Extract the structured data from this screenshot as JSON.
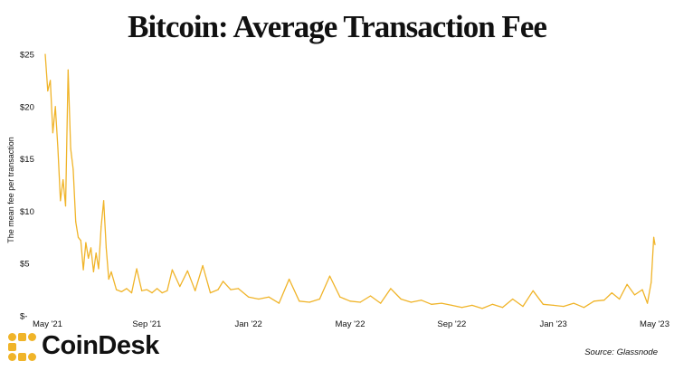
{
  "chart_data": {
    "type": "line",
    "title": "Bitcoin: Average Transaction Fee",
    "ylabel": "The mean fee per transaction",
    "xlabel": "",
    "source": "Source: Glassnode",
    "ylim": [
      0,
      25
    ],
    "xlim": [
      0,
      24
    ],
    "yticks": [
      {
        "value": 0,
        "label": "$-"
      },
      {
        "value": 5,
        "label": "$5"
      },
      {
        "value": 10,
        "label": "$10"
      },
      {
        "value": 15,
        "label": "$15"
      },
      {
        "value": 20,
        "label": "$20"
      },
      {
        "value": 25,
        "label": "$25"
      }
    ],
    "xticks": [
      {
        "value": 0,
        "label": "May '21"
      },
      {
        "value": 4,
        "label": "Sep '21"
      },
      {
        "value": 8,
        "label": "Jan '22"
      },
      {
        "value": 12,
        "label": "May '22"
      },
      {
        "value": 16,
        "label": "Sep '22"
      },
      {
        "value": 20,
        "label": "Jan '23"
      },
      {
        "value": 24,
        "label": "May '23"
      }
    ],
    "series": [
      {
        "name": "Average Transaction Fee",
        "color": "#F0B429",
        "x": [
          0,
          0.1,
          0.2,
          0.3,
          0.4,
          0.5,
          0.6,
          0.7,
          0.8,
          0.9,
          1.0,
          1.1,
          1.2,
          1.3,
          1.4,
          1.5,
          1.6,
          1.7,
          1.8,
          1.9,
          2.0,
          2.1,
          2.2,
          2.3,
          2.4,
          2.5,
          2.6,
          2.8,
          3.0,
          3.2,
          3.4,
          3.6,
          3.8,
          4.0,
          4.2,
          4.4,
          4.6,
          4.8,
          5.0,
          5.3,
          5.6,
          5.9,
          6.2,
          6.5,
          6.8,
          7.0,
          7.3,
          7.6,
          8.0,
          8.4,
          8.8,
          9.2,
          9.6,
          10.0,
          10.4,
          10.8,
          11.2,
          11.6,
          12.0,
          12.4,
          12.8,
          13.2,
          13.6,
          14.0,
          14.4,
          14.8,
          15.2,
          15.6,
          16.0,
          16.4,
          16.8,
          17.2,
          17.6,
          18.0,
          18.4,
          18.8,
          19.2,
          19.6,
          20.0,
          20.4,
          20.8,
          21.2,
          21.6,
          22.0,
          22.3,
          22.6,
          22.9,
          23.2,
          23.5,
          23.7,
          23.85,
          23.95,
          24.0
        ],
        "values": [
          25,
          21.5,
          22.5,
          17.5,
          20,
          16,
          11,
          13,
          10.5,
          23.5,
          16,
          14,
          9,
          7.5,
          7.2,
          4.4,
          7,
          5.5,
          6.5,
          4.2,
          6,
          4.5,
          8.5,
          11,
          6.5,
          3.5,
          4.2,
          2.5,
          2.3,
          2.6,
          2.2,
          4.5,
          2.4,
          2.5,
          2.2,
          2.6,
          2.2,
          2.4,
          4.4,
          2.8,
          4.3,
          2.4,
          4.8,
          2.2,
          2.5,
          3.3,
          2.5,
          2.6,
          1.8,
          1.6,
          1.8,
          1.2,
          3.5,
          1.4,
          1.3,
          1.6,
          3.8,
          1.8,
          1.4,
          1.3,
          1.9,
          1.2,
          2.6,
          1.6,
          1.3,
          1.5,
          1.1,
          1.2,
          1.0,
          0.8,
          1.0,
          0.7,
          1.1,
          0.8,
          1.6,
          0.9,
          2.4,
          1.1,
          1.0,
          0.9,
          1.2,
          0.8,
          1.4,
          1.5,
          2.2,
          1.6,
          3.0,
          2.0,
          2.5,
          1.2,
          3.2,
          7.5,
          6.8
        ]
      }
    ]
  },
  "branding": {
    "logo_text": "CoinDesk",
    "logo_color": "#F0B429"
  }
}
